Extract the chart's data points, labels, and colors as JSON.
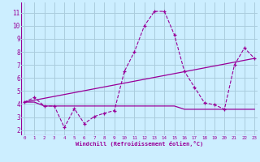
{
  "xlabel": "Windchill (Refroidissement éolien,°C)",
  "background_color": "#cceeff",
  "grid_color": "#aaccdd",
  "line_color": "#990099",
  "x_ticks": [
    0,
    1,
    2,
    3,
    4,
    5,
    6,
    7,
    8,
    9,
    10,
    11,
    12,
    13,
    14,
    15,
    16,
    17,
    18,
    19,
    20,
    21,
    22,
    23
  ],
  "y_ticks": [
    2,
    3,
    4,
    5,
    6,
    7,
    8,
    9,
    10,
    11
  ],
  "xlim": [
    -0.3,
    23.3
  ],
  "ylim": [
    1.6,
    11.8
  ],
  "line1_x": [
    0,
    1,
    2,
    3,
    4,
    5,
    6,
    7,
    8,
    9,
    10,
    11,
    12,
    13,
    14,
    15,
    16,
    17,
    18,
    19,
    20,
    21,
    22,
    23
  ],
  "line1_y": [
    4.15,
    4.5,
    3.85,
    3.85,
    2.2,
    3.65,
    2.5,
    3.05,
    3.3,
    3.5,
    6.5,
    8.0,
    10.0,
    11.1,
    11.1,
    9.3,
    6.5,
    5.3,
    4.1,
    3.95,
    3.6,
    7.0,
    8.3,
    7.5
  ],
  "line2_x": [
    0,
    23
  ],
  "line2_y": [
    4.15,
    7.5
  ],
  "line3_x": [
    0,
    1,
    2,
    3,
    4,
    5,
    6,
    7,
    8,
    9,
    10,
    11,
    12,
    13,
    14,
    15,
    16,
    17,
    18,
    19,
    20,
    21,
    22,
    23
  ],
  "line3_y": [
    4.15,
    4.15,
    3.85,
    3.85,
    3.85,
    3.85,
    3.85,
    3.85,
    3.85,
    3.85,
    3.85,
    3.85,
    3.85,
    3.85,
    3.85,
    3.85,
    3.6,
    3.6,
    3.6,
    3.6,
    3.6,
    3.6,
    3.6,
    3.6
  ]
}
